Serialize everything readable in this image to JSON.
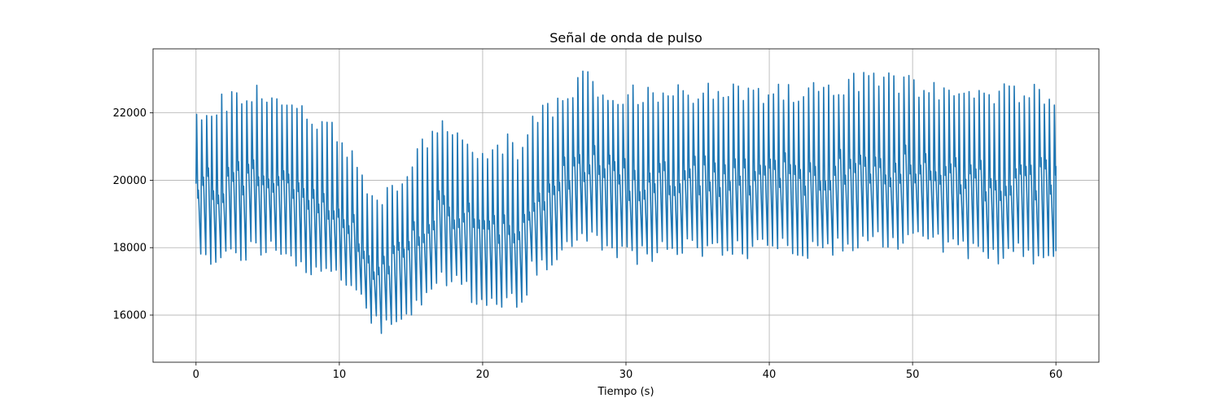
{
  "chart_data": {
    "type": "line",
    "title": "Señal de onda de pulso",
    "xlabel": "Tiempo (s)",
    "ylabel": "",
    "xlim": [
      -3,
      63
    ],
    "ylim": [
      14600,
      23900
    ],
    "xticks": [
      0,
      10,
      20,
      30,
      40,
      50,
      60
    ],
    "xtick_labels": [
      "0",
      "10",
      "20",
      "30",
      "40",
      "50",
      "60"
    ],
    "yticks": [
      16000,
      18000,
      20000,
      22000
    ],
    "ytick_labels": [
      "16000",
      "18000",
      "20000",
      "22000"
    ],
    "grid": true,
    "legend": "none",
    "series": [
      {
        "color": "#1f77b4",
        "pulse_period_s": 0.35,
        "envelope": {
          "x": [
            0,
            1,
            2,
            3,
            4,
            5,
            6,
            7,
            8,
            9,
            10,
            11,
            12,
            12.7,
            13,
            14,
            15,
            16,
            17,
            17.5,
            18,
            19,
            20,
            21,
            22,
            22.5,
            23,
            24,
            25,
            26,
            27,
            27.5,
            28,
            29,
            30,
            32,
            34,
            36,
            38,
            40,
            42,
            44,
            46,
            48,
            50,
            52,
            54,
            56,
            58,
            60
          ],
          "upper": [
            22300,
            22500,
            22600,
            22750,
            22850,
            22800,
            22750,
            22500,
            22200,
            21900,
            21500,
            20800,
            19900,
            19500,
            19800,
            20200,
            20800,
            21400,
            21900,
            21950,
            21700,
            21300,
            20800,
            21100,
            21500,
            20500,
            21800,
            22200,
            22500,
            22800,
            23300,
            23400,
            23000,
            22800,
            22900,
            22800,
            22850,
            22900,
            22850,
            22900,
            22950,
            23000,
            23250,
            23200,
            23100,
            22950,
            22800,
            22900,
            22900,
            22800
          ],
          "lower": [
            17500,
            17450,
            17500,
            17600,
            17700,
            17650,
            17600,
            17300,
            17050,
            16950,
            16800,
            16300,
            15700,
            15050,
            15400,
            15600,
            15900,
            16400,
            16800,
            16800,
            16600,
            16300,
            16000,
            16200,
            16100,
            16050,
            17000,
            17300,
            17600,
            17900,
            18000,
            18100,
            17850,
            17500,
            17450,
            17600,
            17650,
            17650,
            17600,
            17650,
            17650,
            17700,
            17900,
            17950,
            17900,
            17750,
            17550,
            17500,
            17500,
            17550
          ]
        }
      }
    ]
  }
}
